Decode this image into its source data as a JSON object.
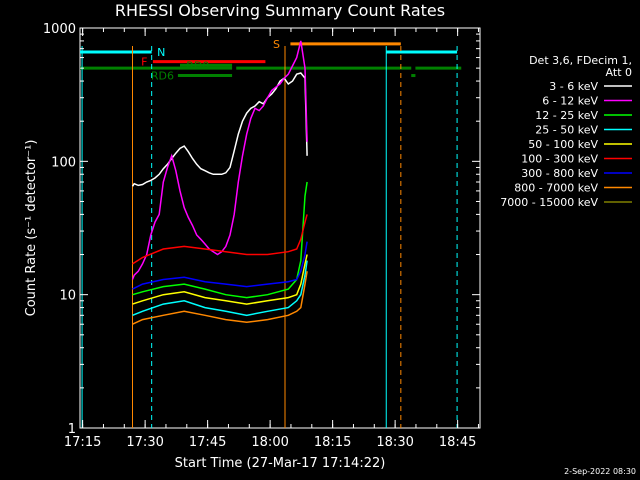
{
  "chart_data": {
    "type": "line",
    "title": "RHESSI Observing Summary Count Rates",
    "xlabel": "Start Time (27-Mar-17 17:14:22)",
    "ylabel": "Count Rate (s⁻¹ detector⁻¹)",
    "yscale": "log",
    "ylim": [
      1,
      1000
    ],
    "xlim_minutes": [
      0,
      96
    ],
    "x_ticks": [
      "17:15",
      "17:30",
      "17:45",
      "18:00",
      "18:15",
      "18:30",
      "18:45"
    ],
    "y_ticks": [
      "1",
      "10",
      "100",
      "1000"
    ],
    "legend_header": [
      "Det 3,6, FDecim 1,",
      "Att 0"
    ],
    "series": [
      {
        "name": "3 - 6 keV",
        "color": "#ffffff",
        "x": [
          12.6,
          13,
          14,
          15,
          16,
          17,
          18,
          19,
          20,
          21,
          22,
          23,
          24,
          25,
          26,
          27,
          28,
          29,
          30,
          31,
          32,
          33,
          34,
          35,
          36,
          37,
          38,
          39,
          40,
          41,
          42,
          43,
          44,
          45,
          46,
          47,
          48,
          49,
          50,
          51,
          52,
          53,
          54,
          54.5
        ],
        "y": [
          65,
          68,
          66,
          67,
          70,
          72,
          75,
          80,
          88,
          95,
          105,
          115,
          125,
          130,
          118,
          105,
          95,
          88,
          85,
          82,
          80,
          80,
          80,
          82,
          90,
          120,
          160,
          200,
          230,
          250,
          260,
          280,
          270,
          300,
          320,
          350,
          400,
          420,
          380,
          400,
          450,
          460,
          420,
          110
        ]
      },
      {
        "name": "6 - 12 keV",
        "color": "#ff00ff",
        "x": [
          12.6,
          13,
          14,
          15,
          16,
          17,
          18,
          19,
          20,
          21,
          22,
          23,
          24,
          25,
          26,
          27,
          28,
          29,
          30,
          31,
          32,
          33,
          34,
          35,
          36,
          37,
          38,
          39,
          40,
          41,
          42,
          43,
          44,
          45,
          46,
          47,
          48,
          49,
          50,
          51,
          52,
          53,
          54,
          54.5
        ],
        "y": [
          13,
          14,
          15,
          17,
          20,
          28,
          35,
          40,
          70,
          90,
          110,
          85,
          60,
          45,
          38,
          33,
          28,
          26,
          24,
          22,
          21,
          20,
          21,
          23,
          28,
          40,
          70,
          110,
          160,
          210,
          250,
          240,
          260,
          300,
          340,
          360,
          380,
          420,
          450,
          520,
          600,
          800,
          500,
          140
        ]
      },
      {
        "name": "12 - 25 keV",
        "color": "#00ff00",
        "x": [
          12.6,
          15,
          20,
          25,
          30,
          35,
          40,
          45,
          50,
          52,
          53,
          54,
          54.5
        ],
        "y": [
          10,
          10.5,
          11.5,
          12,
          11,
          10,
          9.5,
          10,
          11,
          13,
          18,
          55,
          70
        ]
      },
      {
        "name": "25 - 50 keV",
        "color": "#00ffff",
        "x": [
          12.6,
          15,
          20,
          25,
          30,
          35,
          40,
          45,
          50,
          52,
          53,
          54,
          54.5
        ],
        "y": [
          7,
          7.5,
          8.5,
          9,
          8,
          7.5,
          7,
          7.5,
          8,
          9,
          10,
          14,
          18
        ]
      },
      {
        "name": "50 - 100 keV",
        "color": "#ffff00",
        "x": [
          12.6,
          15,
          20,
          25,
          30,
          35,
          40,
          45,
          50,
          52,
          53,
          54,
          54.5
        ],
        "y": [
          8.5,
          9,
          10,
          10.5,
          9.5,
          9,
          8.5,
          9,
          9.5,
          10,
          12,
          17,
          20
        ]
      },
      {
        "name": "100 - 300 keV",
        "color": "#ff0000",
        "x": [
          12.6,
          15,
          20,
          25,
          30,
          35,
          40,
          45,
          50,
          52,
          53,
          54,
          54.5
        ],
        "y": [
          17,
          19,
          22,
          23,
          22,
          21,
          20,
          20,
          21,
          22,
          26,
          35,
          40
        ]
      },
      {
        "name": "300 - 800 keV",
        "color": "#0000ff",
        "x": [
          12.6,
          15,
          20,
          25,
          30,
          35,
          40,
          45,
          50,
          52,
          53,
          54,
          54.5
        ],
        "y": [
          11,
          12,
          13,
          13.5,
          12.5,
          12,
          11.5,
          12,
          12.5,
          13,
          15,
          20,
          25
        ]
      },
      {
        "name": "800 - 7000 keV",
        "color": "#ff8800",
        "x": [
          12.6,
          15,
          20,
          25,
          30,
          35,
          40,
          45,
          50,
          52,
          53,
          54,
          54.5
        ],
        "y": [
          6,
          6.5,
          7,
          7.5,
          7,
          6.5,
          6.2,
          6.5,
          7,
          7.5,
          8,
          12,
          15
        ]
      },
      {
        "name": "7000 - 15000 keV",
        "color": "#808000",
        "x": [],
        "y": []
      }
    ],
    "flag_labels": {
      "N": "N",
      "F": "F",
      "RD0": "RD0",
      "RD6": "RD6",
      "S": "S"
    },
    "timestamp": "2-Sep-2022 08:30"
  }
}
